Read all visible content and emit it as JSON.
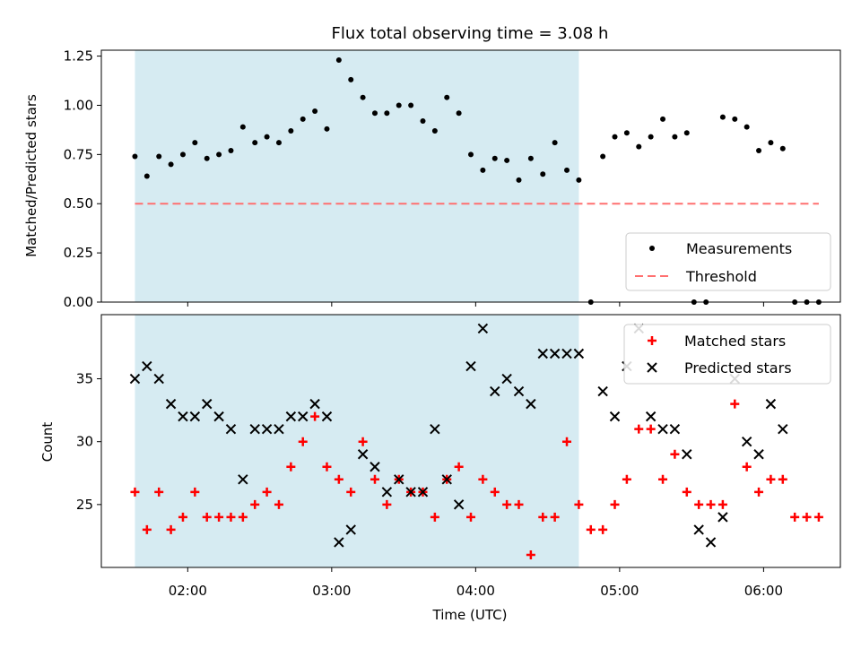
{
  "chart_data": {
    "type": "scatter",
    "title": "Flux total observing time = 3.08 h",
    "xlabel": "Time (UTC)",
    "xlim_minutes": [
      84,
      392
    ],
    "xticks": [
      {
        "minute": 120,
        "label": "02:00"
      },
      {
        "minute": 180,
        "label": "03:00"
      },
      {
        "minute": 240,
        "label": "04:00"
      },
      {
        "minute": 300,
        "label": "05:00"
      },
      {
        "minute": 360,
        "label": "06:00"
      }
    ],
    "shaded_span_minutes": [
      98,
      283
    ],
    "shade_color": "#add8e6",
    "top_panel": {
      "ylabel": "Matched/Predicted stars",
      "ylim": [
        0,
        1.28
      ],
      "yticks": [
        0,
        0.25,
        0.5,
        0.75,
        1.0,
        1.25
      ],
      "ytick_labels": [
        "0.00",
        "0.25",
        "0.50",
        "0.75",
        "1.00",
        "1.25"
      ],
      "threshold": {
        "name": "Threshold",
        "value": 0.5,
        "color": "#ff7070"
      },
      "measurements": {
        "name": "Measurements",
        "color": "#000000",
        "x": [
          98,
          103,
          108,
          113,
          118,
          123,
          128,
          133,
          138,
          143,
          148,
          153,
          158,
          163,
          168,
          173,
          178,
          183,
          188,
          193,
          198,
          203,
          208,
          213,
          218,
          223,
          228,
          233,
          238,
          243,
          248,
          253,
          258,
          263,
          268,
          273,
          278,
          283,
          288,
          293,
          298,
          303,
          308,
          313,
          318,
          323,
          343,
          348,
          353,
          358,
          363,
          368,
          373,
          378,
          383
        ],
        "y": [
          0.74,
          0.64,
          0.74,
          0.7,
          0.75,
          0.81,
          0.73,
          0.75,
          0.77,
          0.89,
          0.81,
          0.84,
          0.81,
          0.87,
          0.93,
          0.97,
          0.88,
          1.23,
          1.13,
          1.04,
          0.96,
          0.96,
          1.0,
          1.0,
          0.92,
          0.87,
          1.04,
          0.96,
          0.75,
          0.67,
          0.73,
          0.72,
          0.62,
          0.73,
          0.65,
          0.81,
          0.67,
          0.62,
          0.0,
          0.74,
          0.84,
          0.86,
          0.79,
          0.84,
          0.93,
          0.84,
          0.94,
          0.93,
          0.89,
          0.77,
          0.81,
          0.78,
          0.0,
          0.0,
          0.0
        ]
      },
      "extra_zero_points_x": [
        331,
        336
      ],
      "extra_point": {
        "x": 328,
        "y": 0.86
      }
    },
    "bottom_panel": {
      "ylabel": "Count",
      "ylim": [
        20.0,
        40.1
      ],
      "yticks": [
        25,
        30,
        35
      ],
      "matched": {
        "name": "Matched stars",
        "color": "#ff0000",
        "x": [
          98,
          103,
          108,
          113,
          118,
          123,
          128,
          133,
          138,
          143,
          148,
          153,
          158,
          163,
          168,
          173,
          178,
          183,
          188,
          193,
          198,
          203,
          208,
          213,
          218,
          223,
          228,
          233,
          238,
          243,
          248,
          253,
          258,
          263,
          268,
          273,
          278,
          283,
          288,
          293,
          298,
          303,
          308,
          313,
          318,
          323,
          328,
          333,
          338,
          343,
          348,
          353,
          358,
          363,
          368,
          373,
          378,
          383
        ],
        "y": [
          26,
          23,
          26,
          23,
          24,
          26,
          24,
          24,
          24,
          24,
          25,
          26,
          25,
          28,
          30,
          32,
          28,
          27,
          26,
          30,
          27,
          25,
          27,
          26,
          26,
          24,
          27,
          28,
          24,
          27,
          26,
          25,
          25,
          21,
          24,
          24,
          30,
          25,
          23,
          23,
          25,
          27,
          31,
          31,
          27,
          29,
          26,
          25,
          25,
          25,
          33,
          28,
          26,
          27,
          27,
          24,
          24,
          24
        ]
      },
      "predicted": {
        "name": "Predicted stars",
        "color": "#000000",
        "x": [
          98,
          103,
          108,
          113,
          118,
          123,
          128,
          133,
          138,
          143,
          148,
          153,
          158,
          163,
          168,
          173,
          178,
          183,
          188,
          193,
          198,
          203,
          208,
          213,
          218,
          223,
          228,
          233,
          238,
          243,
          248,
          253,
          258,
          263,
          268,
          273,
          278,
          283,
          293,
          298,
          303,
          308,
          313,
          318,
          323,
          328,
          333,
          338,
          343,
          348,
          353,
          358,
          363,
          368
        ],
        "y": [
          35,
          36,
          35,
          33,
          32,
          32,
          33,
          32,
          31,
          27,
          31,
          31,
          31,
          32,
          32,
          33,
          32,
          22,
          23,
          29,
          28,
          26,
          27,
          26,
          26,
          31,
          27,
          25,
          36,
          39,
          34,
          35,
          34,
          33,
          37,
          37,
          37,
          37,
          34,
          32,
          36,
          39,
          32,
          31,
          31,
          29,
          23,
          22,
          24,
          35,
          30,
          29,
          33,
          31
        ]
      }
    }
  }
}
